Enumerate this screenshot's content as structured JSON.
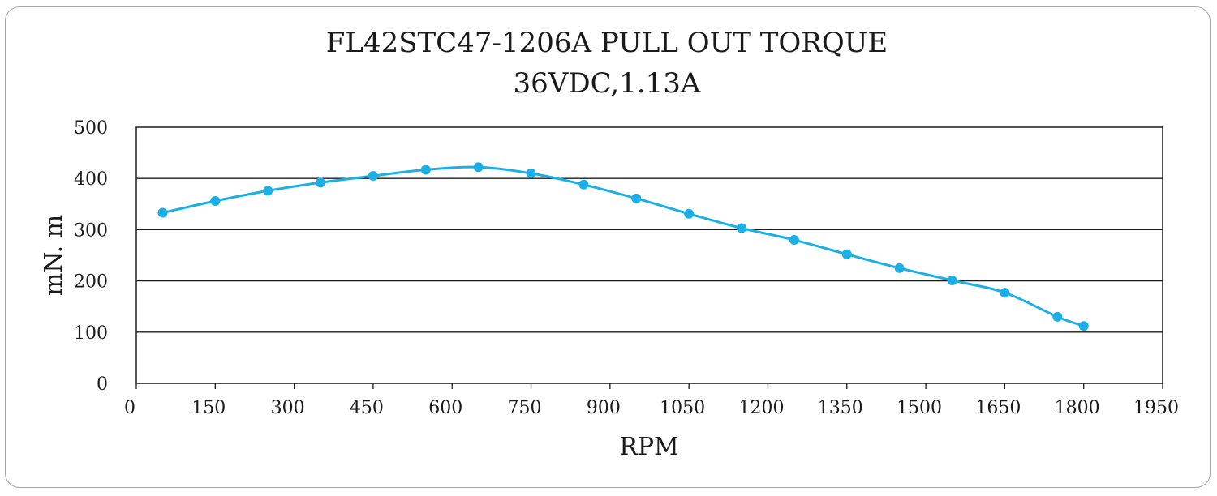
{
  "chart_data": {
    "type": "line",
    "title": "FL42STC47-1206A PULL OUT TORQUE",
    "subtitle": "36VDC,1.13A",
    "xlabel": "RPM",
    "ylabel": "mN. m",
    "xlim": [
      0,
      1950
    ],
    "ylim": [
      0,
      500
    ],
    "xticks": [
      0,
      150,
      300,
      450,
      600,
      750,
      900,
      1050,
      1200,
      1350,
      1500,
      1650,
      1800,
      1950
    ],
    "yticks": [
      0,
      100,
      200,
      300,
      400,
      500
    ],
    "grid": true,
    "legend": "none",
    "series_color": "#1aafe6",
    "series": [
      {
        "x": [
          50,
          150,
          250,
          350,
          450,
          550,
          650,
          750,
          850,
          950,
          1050,
          1150,
          1250,
          1350,
          1450,
          1550,
          1650,
          1750,
          1800
        ],
        "y": [
          333,
          356,
          376,
          392,
          405,
          417,
          422,
          410,
          388,
          361,
          331,
          303,
          280,
          252,
          225,
          201,
          177,
          130,
          112
        ]
      }
    ]
  }
}
